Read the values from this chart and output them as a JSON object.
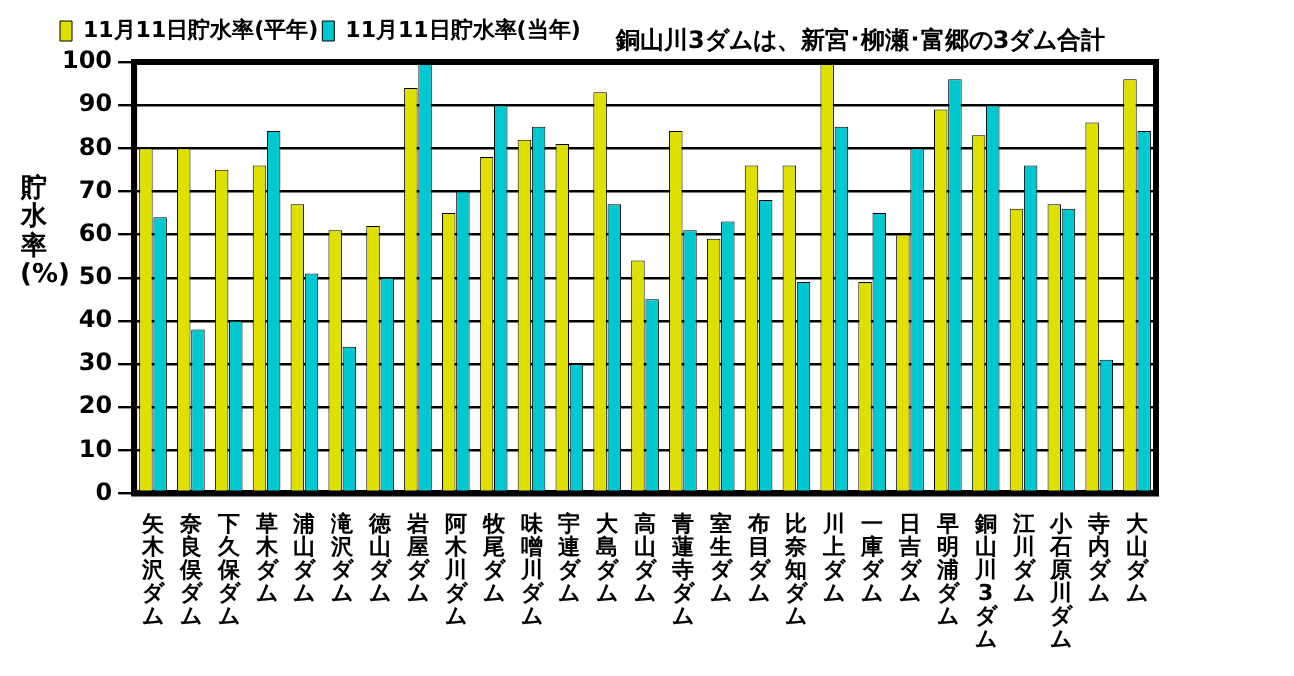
{
  "chart_data": {
    "type": "bar",
    "title": "銅山川3ダムは、新宮･柳瀬･富郷の3ダム合計",
    "ylabel": "貯水率(%)",
    "categories": [
      "矢木沢ダム",
      "奈良俣ダム",
      "下久保ダム",
      "草木ダム",
      "浦山ダム",
      "滝沢ダム",
      "徳山ダム",
      "岩屋ダム",
      "阿木川ダム",
      "牧尾ダム",
      "味噌川ダム",
      "宇連ダム",
      "大島ダム",
      "高山ダム",
      "青蓮寺ダム",
      "室生ダム",
      "布目ダム",
      "比奈知ダム",
      "川上ダム",
      "一庫ダム",
      "日吉ダム",
      "早明浦ダム",
      "銅山川3ダム",
      "江川ダム",
      "小石原川ダム",
      "寺内ダム",
      "大山ダム"
    ],
    "series": [
      {
        "name": "11月11日貯水率(平年)",
        "color": "#e0e000",
        "values": [
          80,
          80,
          75,
          76,
          67,
          61,
          62,
          94,
          65,
          78,
          82,
          81,
          93,
          54,
          84,
          59,
          76,
          76,
          100,
          49,
          60,
          89,
          83,
          66,
          67,
          86,
          96
        ]
      },
      {
        "name": "11月11日貯水率(当年)",
        "color": "#00c8d0",
        "values": [
          64,
          38,
          40,
          84,
          51,
          34,
          50,
          100,
          70,
          90,
          85,
          30,
          67,
          45,
          61,
          63,
          68,
          49,
          85,
          65,
          80,
          96,
          90,
          76,
          66,
          31,
          84
        ]
      }
    ],
    "ylim": [
      0,
      100
    ],
    "yticks": [
      0,
      10,
      20,
      30,
      40,
      50,
      60,
      70,
      80,
      90,
      100
    ],
    "grid": "y",
    "legend": "top left"
  }
}
